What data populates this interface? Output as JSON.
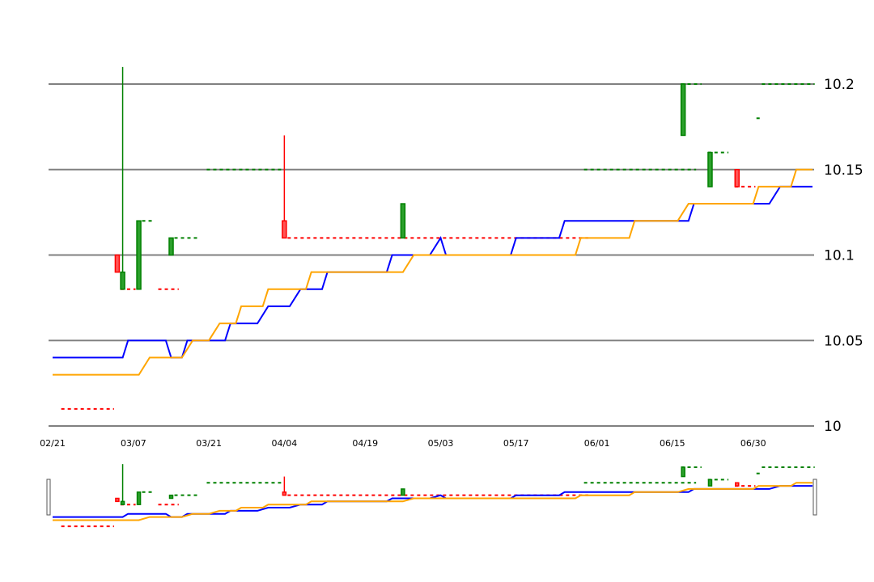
{
  "chart_data": {
    "type": "line",
    "title": "",
    "xlabel": "",
    "ylabel": "",
    "ylim": [
      10.0,
      10.2
    ],
    "yticks": [
      "10",
      "10.05",
      "10.1",
      "10.15",
      "10.2"
    ],
    "ytick_values": [
      10.0,
      10.05,
      10.1,
      10.15,
      10.2
    ],
    "xlim": [
      "2024-02-21",
      "2024-07-11"
    ],
    "xticks": [
      "02/21",
      "03/07",
      "03/21",
      "04/04",
      "04/19",
      "05/03",
      "05/17",
      "06/01",
      "06/15",
      "06/30"
    ],
    "xtick_dates": [
      "2024-02-21",
      "2024-03-07",
      "2024-03-21",
      "2024-04-04",
      "2024-04-19",
      "2024-05-03",
      "2024-05-17",
      "2024-06-01",
      "2024-06-15",
      "2024-06-30"
    ],
    "grid": "horizontal",
    "colors": {
      "up": "#008000",
      "down": "#ff0000",
      "line1": "#0000ff",
      "line2": "#ffa500",
      "grid": "#808080"
    },
    "series": [
      {
        "color": "#0000ff",
        "points": [
          [
            "2024-02-21",
            10.04
          ],
          [
            "2024-03-05",
            10.04
          ],
          [
            "2024-03-06",
            10.05
          ],
          [
            "2024-03-13",
            10.05
          ],
          [
            "2024-03-14",
            10.04
          ],
          [
            "2024-03-16",
            10.04
          ],
          [
            "2024-03-17",
            10.05
          ],
          [
            "2024-03-24",
            10.05
          ],
          [
            "2024-03-25",
            10.06
          ],
          [
            "2024-03-30",
            10.06
          ],
          [
            "2024-04-01",
            10.07
          ],
          [
            "2024-04-05",
            10.07
          ],
          [
            "2024-04-07",
            10.08
          ],
          [
            "2024-04-11",
            10.08
          ],
          [
            "2024-04-12",
            10.09
          ],
          [
            "2024-04-23",
            10.09
          ],
          [
            "2024-04-24",
            10.1
          ],
          [
            "2024-05-01",
            10.1
          ],
          [
            "2024-05-03",
            10.11
          ],
          [
            "2024-05-04",
            10.1
          ],
          [
            "2024-05-16",
            10.1
          ],
          [
            "2024-05-17",
            10.11
          ],
          [
            "2024-05-25",
            10.11
          ],
          [
            "2024-05-26",
            10.12
          ],
          [
            "2024-06-18",
            10.12
          ],
          [
            "2024-06-19",
            10.13
          ],
          [
            "2024-07-03",
            10.13
          ],
          [
            "2024-07-05",
            10.14
          ],
          [
            "2024-07-11",
            10.14
          ]
        ]
      },
      {
        "color": "#ffa500",
        "points": [
          [
            "2024-02-21",
            10.03
          ],
          [
            "2024-03-08",
            10.03
          ],
          [
            "2024-03-10",
            10.04
          ],
          [
            "2024-03-16",
            10.04
          ],
          [
            "2024-03-18",
            10.05
          ],
          [
            "2024-03-21",
            10.05
          ],
          [
            "2024-03-23",
            10.06
          ],
          [
            "2024-03-26",
            10.06
          ],
          [
            "2024-03-27",
            10.07
          ],
          [
            "2024-03-31",
            10.07
          ],
          [
            "2024-04-01",
            10.08
          ],
          [
            "2024-04-08",
            10.08
          ],
          [
            "2024-04-09",
            10.09
          ],
          [
            "2024-04-26",
            10.09
          ],
          [
            "2024-04-28",
            10.1
          ],
          [
            "2024-05-28",
            10.1
          ],
          [
            "2024-05-29",
            10.11
          ],
          [
            "2024-06-07",
            10.11
          ],
          [
            "2024-06-08",
            10.12
          ],
          [
            "2024-06-16",
            10.12
          ],
          [
            "2024-06-18",
            10.13
          ],
          [
            "2024-06-30",
            10.13
          ],
          [
            "2024-07-01",
            10.14
          ],
          [
            "2024-07-07",
            10.14
          ],
          [
            "2024-07-08",
            10.15
          ],
          [
            "2024-07-11",
            10.15
          ]
        ]
      }
    ],
    "candles": [
      {
        "date": "2024-03-04",
        "open": 10.1,
        "close": 10.09,
        "high": 10.1,
        "low": 10.09
      },
      {
        "date": "2024-03-05",
        "open": 10.08,
        "close": 10.09,
        "high": 10.21,
        "low": 10.08
      },
      {
        "date": "2024-03-08",
        "open": 10.08,
        "close": 10.12,
        "high": 10.12,
        "low": 10.08
      },
      {
        "date": "2024-03-14",
        "open": 10.1,
        "close": 10.11,
        "high": 10.11,
        "low": 10.1
      },
      {
        "date": "2024-04-04",
        "open": 10.12,
        "close": 10.11,
        "high": 10.17,
        "low": 10.11
      },
      {
        "date": "2024-04-26",
        "open": 10.11,
        "close": 10.13,
        "high": 10.13,
        "low": 10.11
      },
      {
        "date": "2024-06-17",
        "open": 10.17,
        "close": 10.2,
        "high": 10.2,
        "low": 10.17
      },
      {
        "date": "2024-06-22",
        "open": 10.14,
        "close": 10.16,
        "high": 10.16,
        "low": 10.14
      },
      {
        "date": "2024-06-27",
        "open": 10.15,
        "close": 10.14,
        "high": 10.15,
        "low": 10.14
      }
    ],
    "dashed_levels": [
      {
        "from": "2024-02-23",
        "to": "2024-03-03",
        "value": 10.01,
        "color": "#ff0000"
      },
      {
        "from": "2024-03-05",
        "to": "2024-03-07",
        "value": 10.08,
        "color": "#ff0000"
      },
      {
        "from": "2024-03-09",
        "to": "2024-03-10",
        "value": 10.12,
        "color": "#008000"
      },
      {
        "from": "2024-03-12",
        "to": "2024-03-15",
        "value": 10.08,
        "color": "#ff0000"
      },
      {
        "from": "2024-03-15",
        "to": "2024-03-19",
        "value": 10.11,
        "color": "#008000"
      },
      {
        "from": "2024-03-21",
        "to": "2024-04-03",
        "value": 10.15,
        "color": "#008000"
      },
      {
        "from": "2024-04-05",
        "to": "2024-05-30",
        "value": 10.11,
        "color": "#ff0000"
      },
      {
        "from": "2024-05-30",
        "to": "2024-06-19",
        "value": 10.15,
        "color": "#008000"
      },
      {
        "from": "2024-06-17",
        "to": "2024-06-20",
        "value": 10.2,
        "color": "#008000"
      },
      {
        "from": "2024-06-22",
        "to": "2024-06-25",
        "value": 10.16,
        "color": "#008000"
      },
      {
        "from": "2024-06-27",
        "to": "2024-06-30",
        "value": 10.14,
        "color": "#ff0000"
      },
      {
        "from": "2024-07-01",
        "to": "2024-07-01",
        "value": 10.18,
        "color": "#008000"
      },
      {
        "from": "2024-07-02",
        "to": "2024-07-11",
        "value": 10.2,
        "color": "#008000"
      }
    ]
  }
}
